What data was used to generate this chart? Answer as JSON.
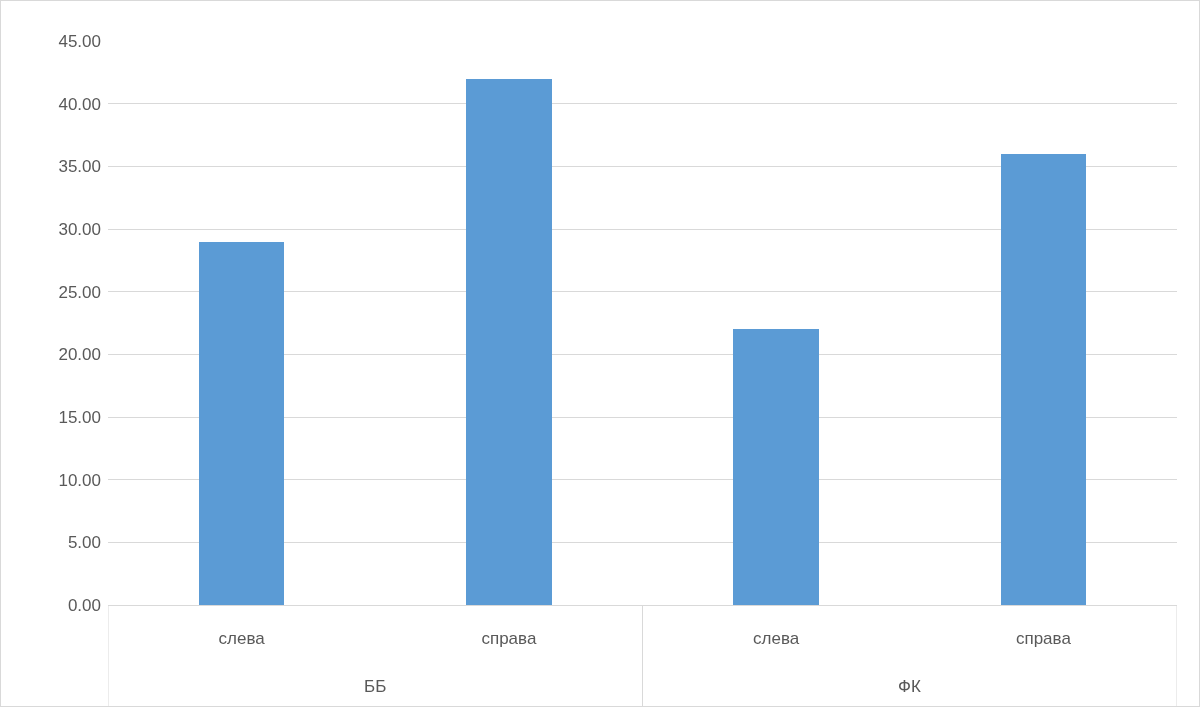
{
  "chart_data": {
    "type": "bar",
    "categories": [
      "слева",
      "справа",
      "слева",
      "справа"
    ],
    "values": [
      29,
      42,
      22,
      36
    ],
    "color": "#5b9bd5",
    "ylim": [
      0,
      45
    ],
    "yticks": [
      {
        "value": 0,
        "label": "0.00"
      },
      {
        "value": 5,
        "label": "5.00"
      },
      {
        "value": 10,
        "label": "10.00"
      },
      {
        "value": 15,
        "label": "15.00"
      },
      {
        "value": 20,
        "label": "20.00"
      },
      {
        "value": 25,
        "label": "25.00"
      },
      {
        "value": 30,
        "label": "30.00"
      },
      {
        "value": 35,
        "label": "35.00"
      },
      {
        "value": 40,
        "label": "40.00"
      },
      {
        "value": 45,
        "label": "45.00"
      }
    ],
    "annotations": [
      "ББ",
      "ФК"
    ],
    "grid": "y"
  }
}
